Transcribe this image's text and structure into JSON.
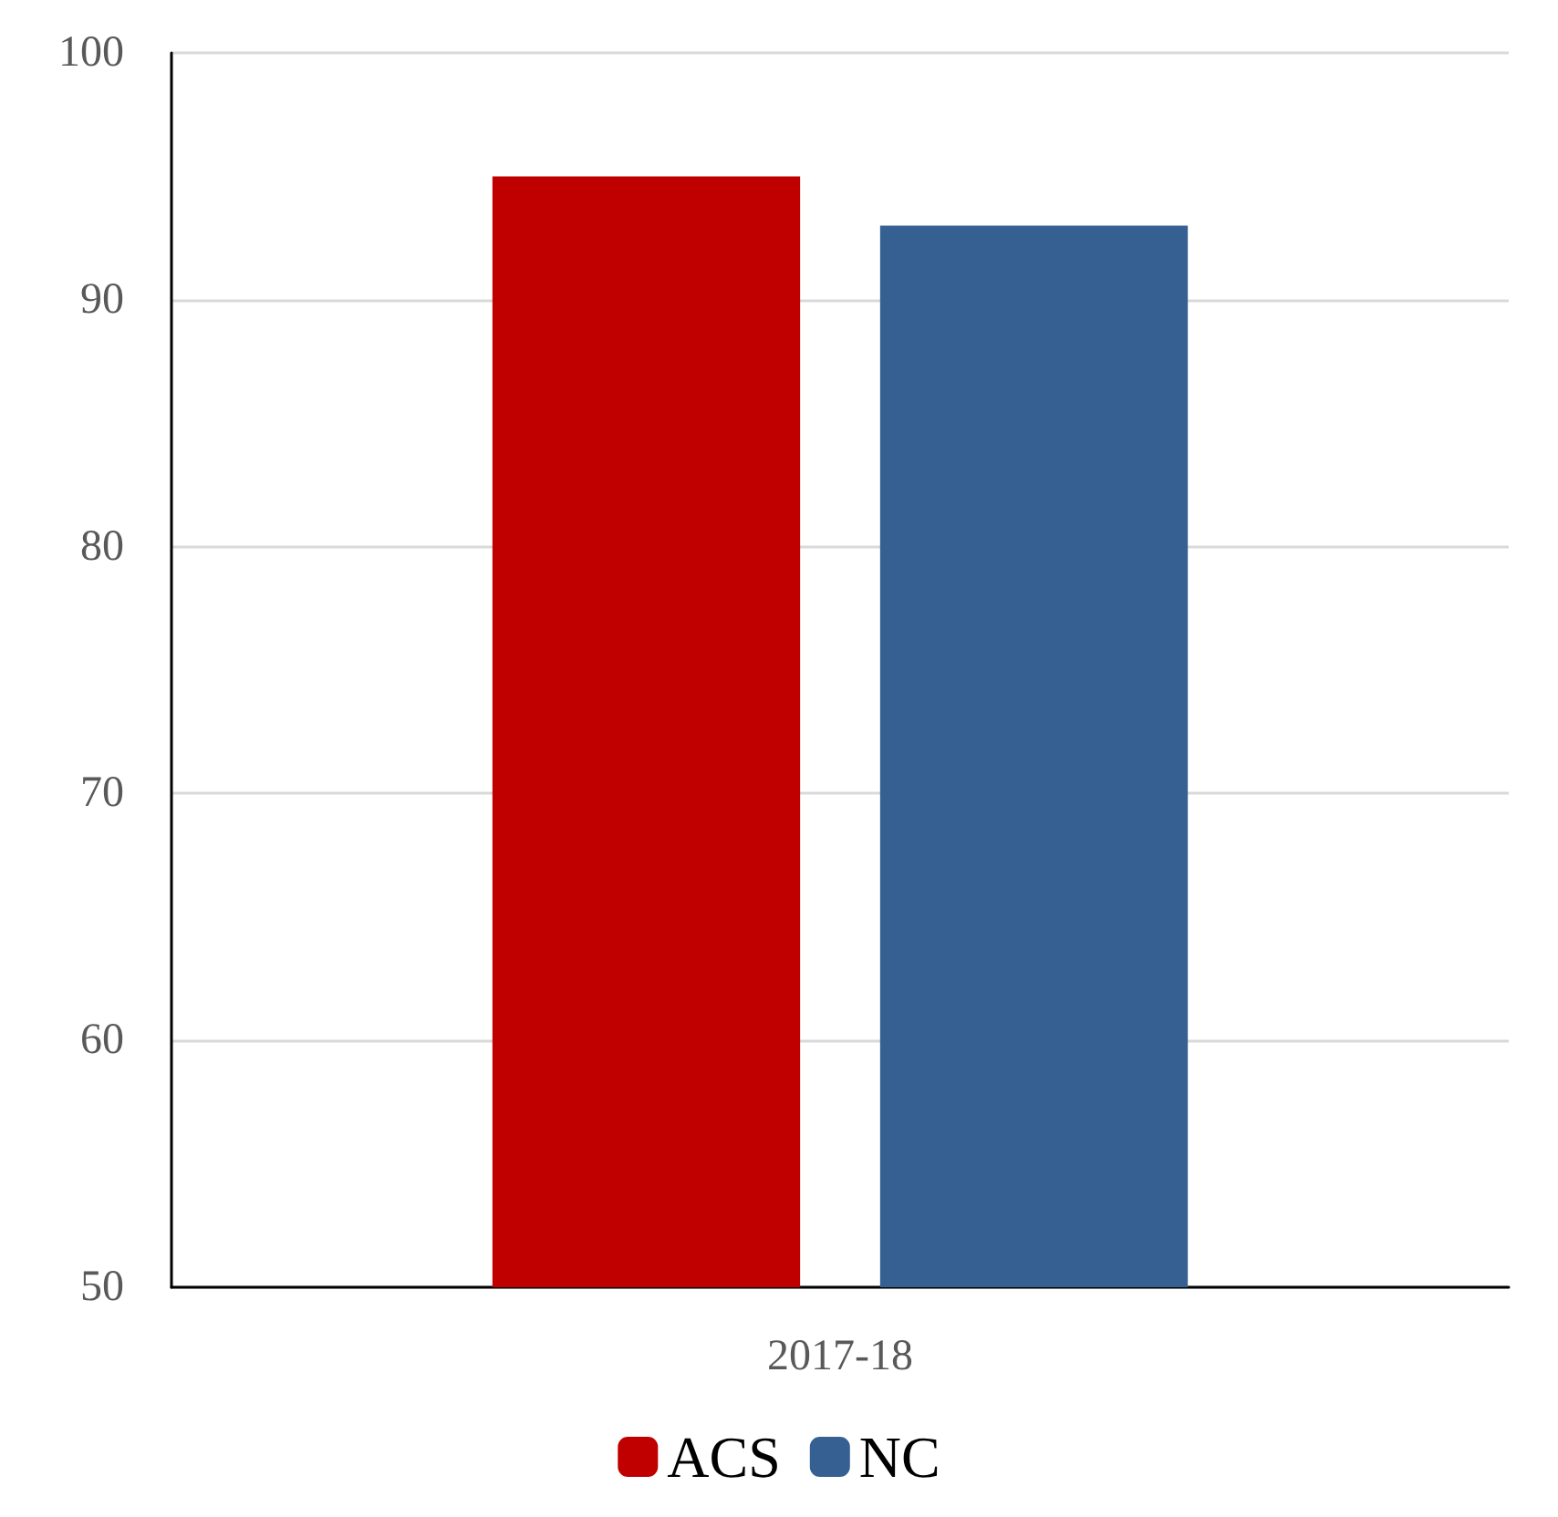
{
  "chart_data": {
    "type": "bar",
    "categories": [
      "2017-18"
    ],
    "series": [
      {
        "name": "ACS",
        "color": "#c00000",
        "values": [
          95
        ]
      },
      {
        "name": "NC",
        "color": "#376092",
        "values": [
          93
        ]
      }
    ],
    "ylim": [
      50,
      100
    ],
    "yticks": [
      50,
      60,
      70,
      80,
      90,
      100
    ],
    "grid": "y",
    "legend": "bottom"
  }
}
